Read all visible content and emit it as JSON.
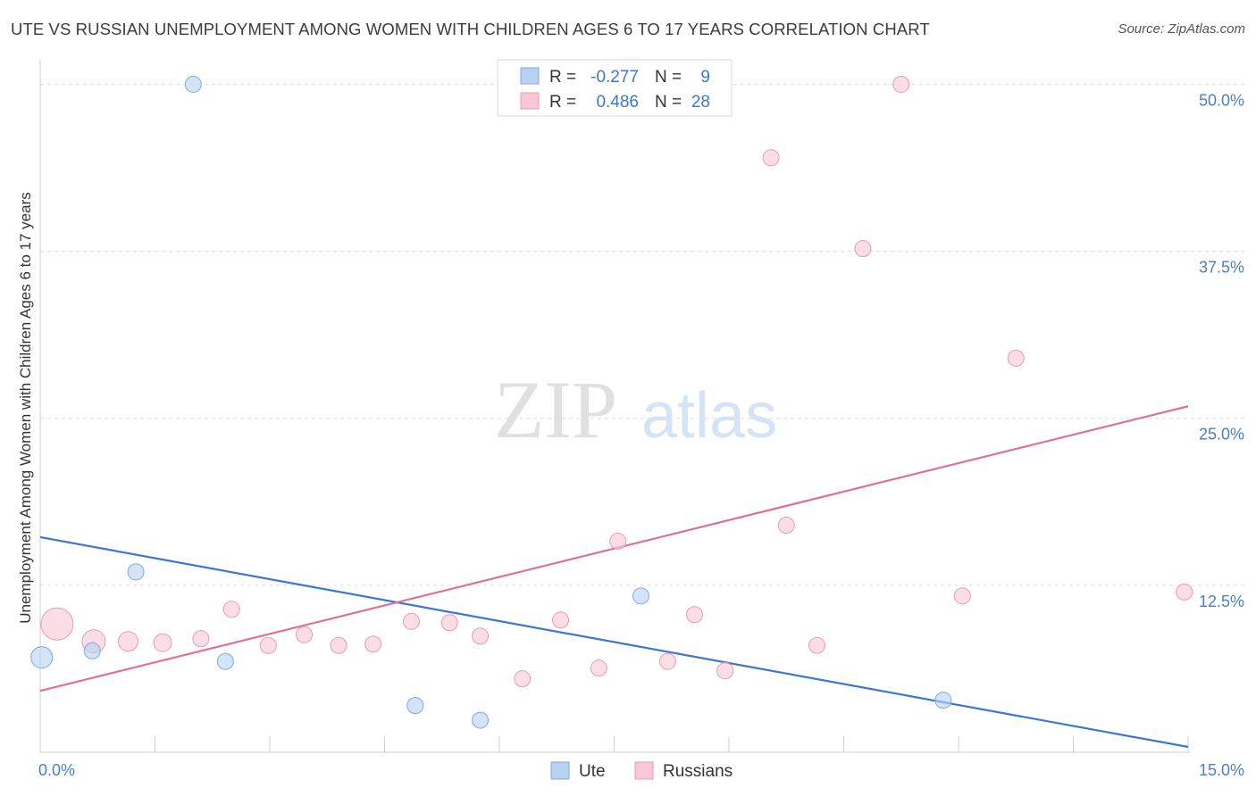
{
  "title": "UTE VS RUSSIAN UNEMPLOYMENT AMONG WOMEN WITH CHILDREN AGES 6 TO 17 YEARS CORRELATION CHART",
  "source": "Source: ZipAtlas.com",
  "watermark": {
    "zip": "ZIP",
    "atlas": "atlas"
  },
  "colors": {
    "ute_fill": "#b8d1f3",
    "ute_stroke": "#7fa9e0",
    "ute_line": "#3a78d0",
    "rus_fill": "#f8c6d6",
    "rus_stroke": "#ea9ab5",
    "rus_line": "#e0709a"
  },
  "stats_legend": [
    {
      "series": "Ute",
      "r_label": "R =",
      "r_value": "-0.277",
      "n_label": "N =",
      "n_value": "9"
    },
    {
      "series": "Russians",
      "r_label": "R =",
      "r_value": "0.486",
      "n_label": "N =",
      "n_value": "28"
    }
  ],
  "chart_data": {
    "type": "scatter",
    "title": "UTE VS RUSSIAN UNEMPLOYMENT AMONG WOMEN WITH CHILDREN AGES 6 TO 17 YEARS CORRELATION CHART",
    "xlabel": "",
    "ylabel": "Unemployment Among Women with Children Ages 6 to 17 years",
    "xlim": [
      0,
      15
    ],
    "ylim": [
      0,
      51.5
    ],
    "y_ticks": [
      12.5,
      25.0,
      37.5,
      50.0
    ],
    "y_tick_labels": [
      "12.5%",
      "25.0%",
      "37.5%",
      "50.0%"
    ],
    "x_tick_labels": [
      "0.0%",
      "15.0%"
    ],
    "grid": true,
    "legend_position": "bottom-center",
    "series": [
      {
        "name": "Ute",
        "points": [
          {
            "x": 0.02,
            "y": 7.1,
            "size": 12
          },
          {
            "x": 0.68,
            "y": 7.6,
            "size": 9
          },
          {
            "x": 1.25,
            "y": 13.5,
            "size": 9
          },
          {
            "x": 2.0,
            "y": 50.0,
            "size": 9
          },
          {
            "x": 2.42,
            "y": 6.8,
            "size": 9
          },
          {
            "x": 4.9,
            "y": 3.5,
            "size": 9
          },
          {
            "x": 5.75,
            "y": 2.4,
            "size": 9
          },
          {
            "x": 7.85,
            "y": 11.7,
            "size": 9
          },
          {
            "x": 11.8,
            "y": 3.9,
            "size": 9
          }
        ],
        "trend": {
          "x": [
            0,
            15
          ],
          "y": [
            16.1,
            0.4
          ]
        }
      },
      {
        "name": "Russians",
        "points": [
          {
            "x": 0.22,
            "y": 9.6,
            "size": 18
          },
          {
            "x": 0.7,
            "y": 8.3,
            "size": 13
          },
          {
            "x": 1.15,
            "y": 8.3,
            "size": 11
          },
          {
            "x": 1.6,
            "y": 8.2,
            "size": 10
          },
          {
            "x": 2.1,
            "y": 8.5,
            "size": 9
          },
          {
            "x": 2.5,
            "y": 10.7,
            "size": 9
          },
          {
            "x": 2.98,
            "y": 8.0,
            "size": 9
          },
          {
            "x": 3.45,
            "y": 8.8,
            "size": 9
          },
          {
            "x": 3.9,
            "y": 8.0,
            "size": 9
          },
          {
            "x": 4.35,
            "y": 8.1,
            "size": 9
          },
          {
            "x": 4.85,
            "y": 9.8,
            "size": 9
          },
          {
            "x": 5.35,
            "y": 9.7,
            "size": 9
          },
          {
            "x": 5.75,
            "y": 8.7,
            "size": 9
          },
          {
            "x": 6.3,
            "y": 5.5,
            "size": 9
          },
          {
            "x": 6.8,
            "y": 9.9,
            "size": 9
          },
          {
            "x": 7.3,
            "y": 6.3,
            "size": 9
          },
          {
            "x": 7.55,
            "y": 15.8,
            "size": 9
          },
          {
            "x": 8.2,
            "y": 6.8,
            "size": 9
          },
          {
            "x": 8.55,
            "y": 10.3,
            "size": 9
          },
          {
            "x": 8.95,
            "y": 6.1,
            "size": 9
          },
          {
            "x": 9.55,
            "y": 44.5,
            "size": 9
          },
          {
            "x": 9.75,
            "y": 17.0,
            "size": 9
          },
          {
            "x": 10.15,
            "y": 8.0,
            "size": 9
          },
          {
            "x": 10.75,
            "y": 37.7,
            "size": 9
          },
          {
            "x": 11.25,
            "y": 50.0,
            "size": 9
          },
          {
            "x": 12.05,
            "y": 11.7,
            "size": 9
          },
          {
            "x": 12.75,
            "y": 29.5,
            "size": 9
          },
          {
            "x": 14.95,
            "y": 12.0,
            "size": 9
          }
        ],
        "trend": {
          "x": [
            0,
            15
          ],
          "y": [
            4.6,
            25.9
          ]
        }
      }
    ]
  }
}
